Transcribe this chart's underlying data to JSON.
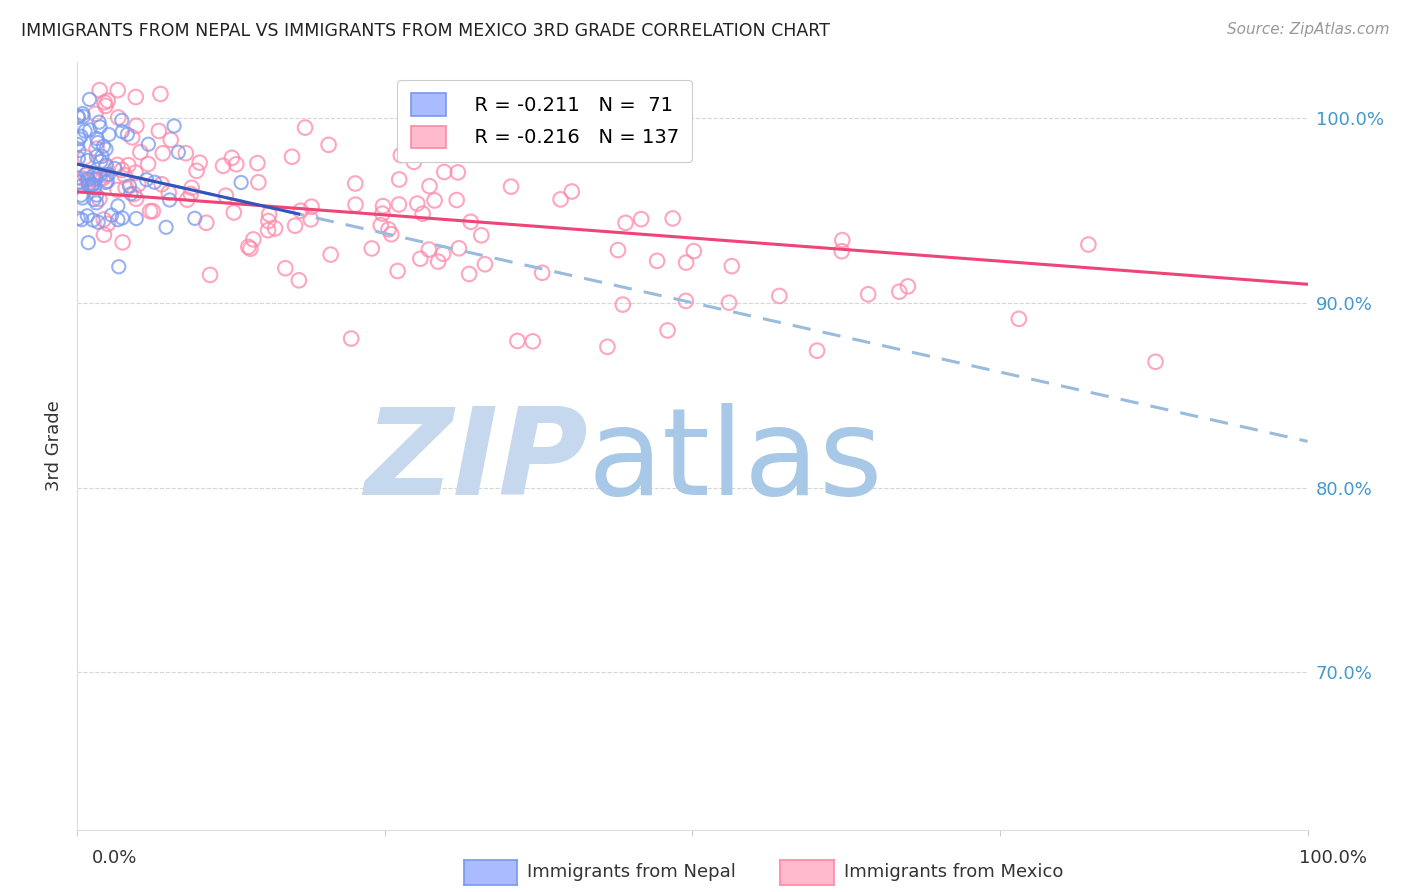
{
  "title": "IMMIGRANTS FROM NEPAL VS IMMIGRANTS FROM MEXICO 3RD GRADE CORRELATION CHART",
  "source": "Source: ZipAtlas.com",
  "ylabel": "3rd Grade",
  "nepal_color": "#7799EE",
  "mexico_color": "#FF88AA",
  "nepal_line_color": "#3355BB",
  "mexico_line_color": "#EE4477",
  "dashed_line_color": "#99BBDD",
  "ytick_labels": [
    "70.0%",
    "80.0%",
    "90.0%",
    "100.0%"
  ],
  "ytick_values": [
    0.7,
    0.8,
    0.9,
    1.0
  ],
  "xlim": [
    0.0,
    1.0
  ],
  "ylim": [
    0.615,
    1.03
  ],
  "background_color": "#FFFFFF",
  "watermark_zip": "ZIP",
  "watermark_atlas": "atlas",
  "watermark_color_zip": "#C5D8EE",
  "watermark_color_atlas": "#A8C8E8",
  "grid_color": "#CCCCCC",
  "nepal_N": 71,
  "mexico_N": 137,
  "nepal_seed": 12,
  "mexico_seed": 77,
  "tick_label_color": "#4499CC",
  "axis_label_color": "#333333",
  "title_color": "#222222",
  "source_color": "#999999",
  "legend_R_nepal": "-0.211",
  "legend_N_nepal": "71",
  "legend_R_mexico": "-0.216",
  "legend_N_mexico": "137"
}
